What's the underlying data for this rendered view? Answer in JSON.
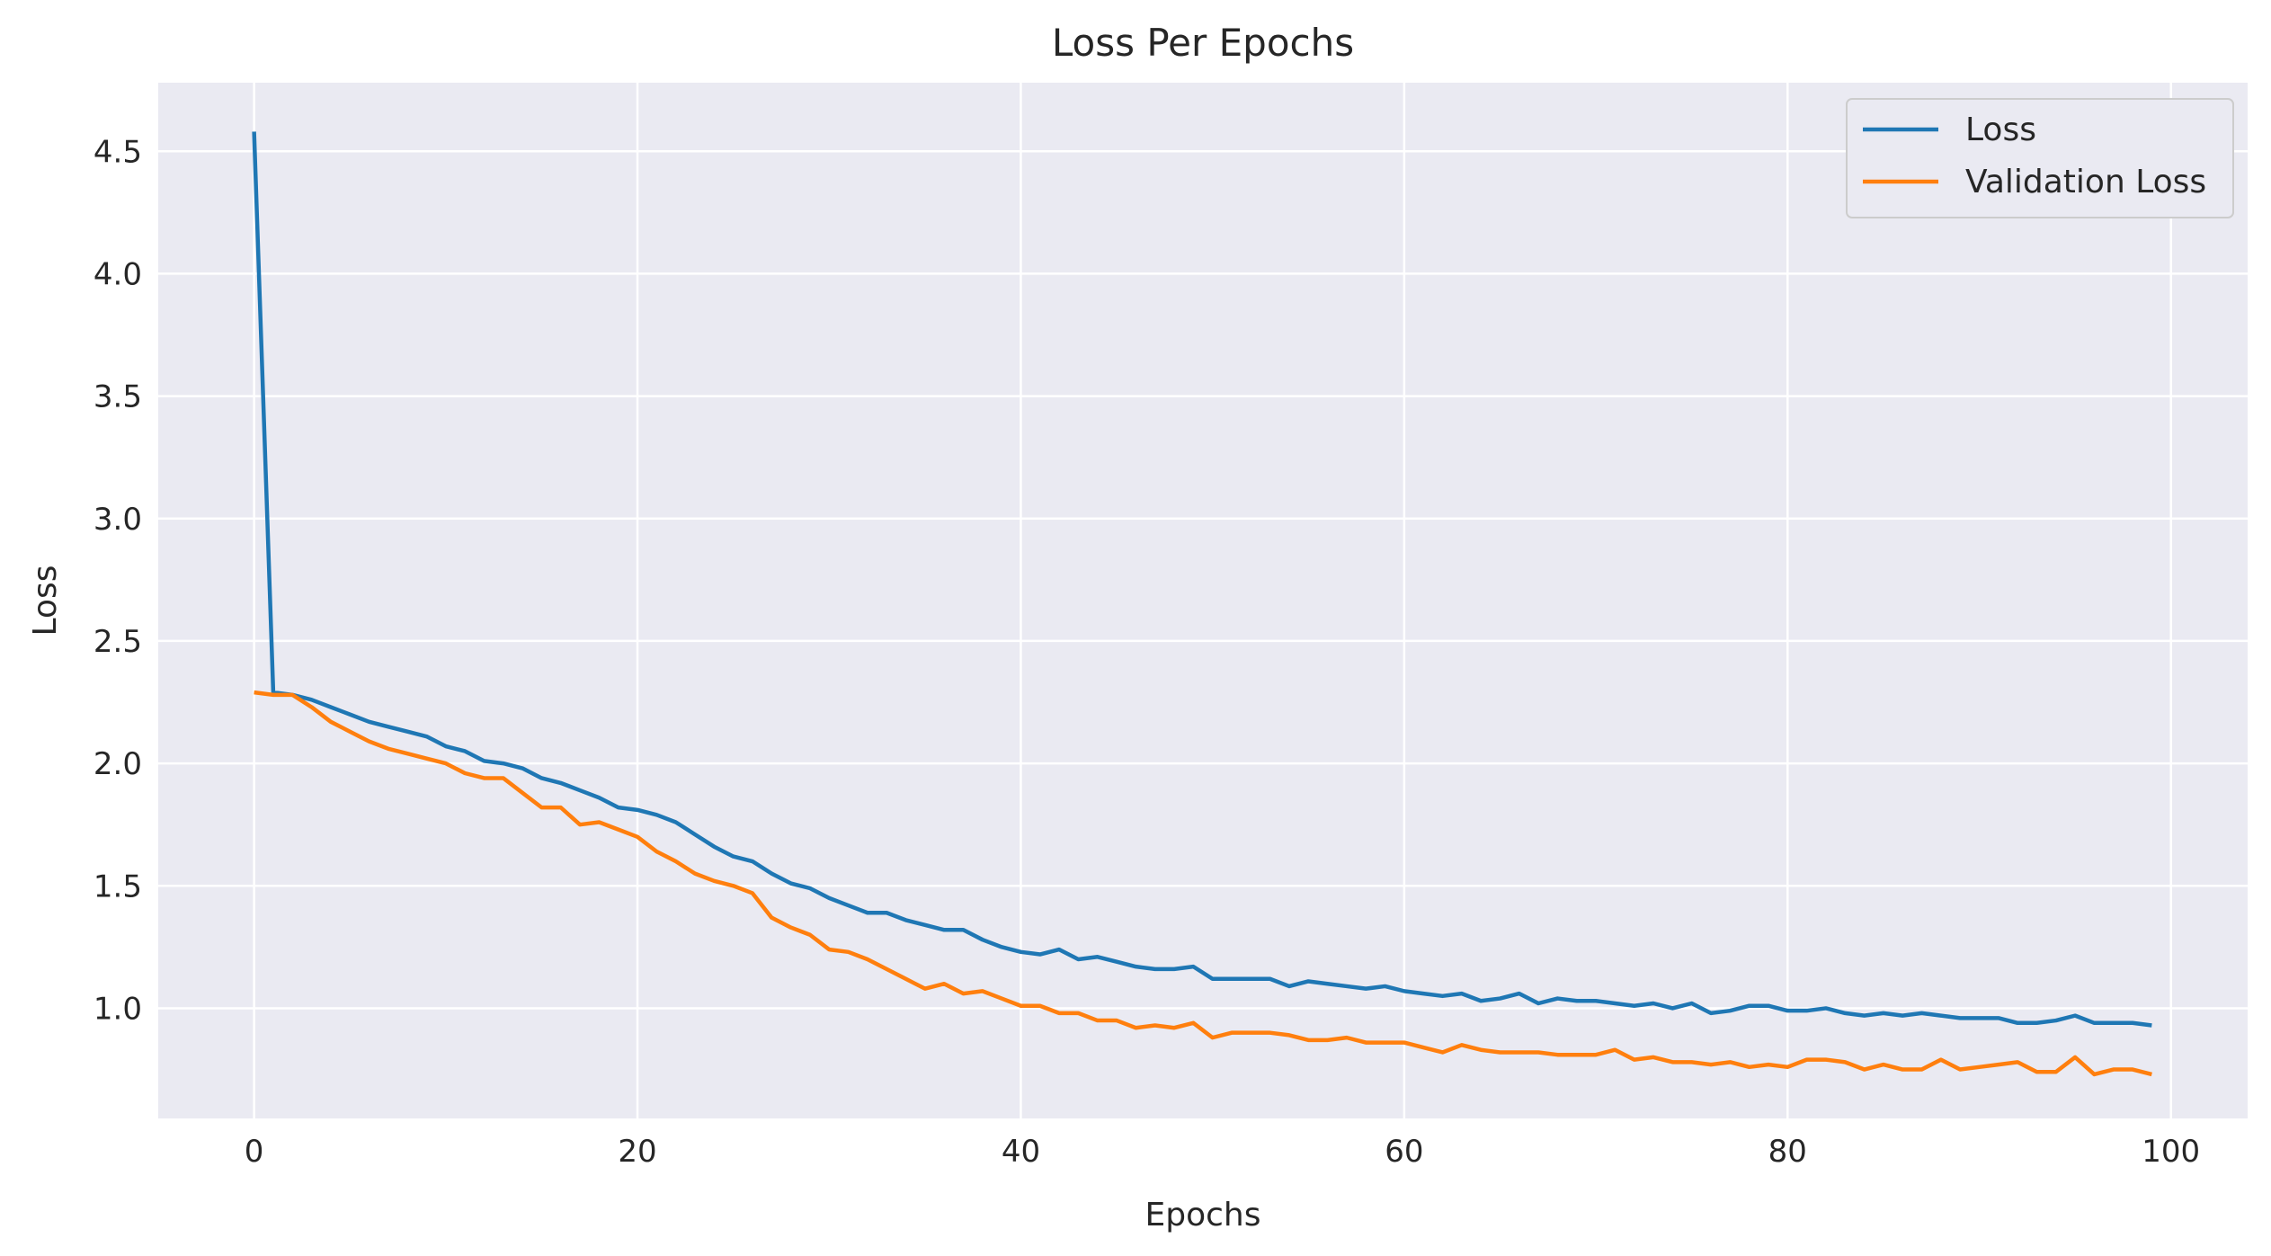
{
  "chart_data": {
    "type": "line",
    "title": "Loss Per Epochs",
    "xlabel": "Epochs",
    "ylabel": "Loss",
    "xlim": [
      -5,
      104
    ],
    "ylim": [
      0.55,
      4.78
    ],
    "xticks": [
      0,
      20,
      40,
      60,
      80,
      100
    ],
    "yticks": [
      1.0,
      1.5,
      2.0,
      2.5,
      3.0,
      3.5,
      4.0,
      4.5
    ],
    "xtick_labels": [
      "0",
      "20",
      "40",
      "60",
      "80",
      "100"
    ],
    "ytick_labels": [
      "1.0",
      "1.5",
      "2.0",
      "2.5",
      "3.0",
      "3.5",
      "4.0",
      "4.5"
    ],
    "grid": true,
    "legend_position": "upper-right",
    "series": [
      {
        "name": "Loss",
        "color": "#1f77b4",
        "values": [
          4.58,
          2.29,
          2.28,
          2.26,
          2.23,
          2.2,
          2.17,
          2.15,
          2.13,
          2.11,
          2.07,
          2.05,
          2.01,
          2.0,
          1.98,
          1.94,
          1.92,
          1.89,
          1.86,
          1.82,
          1.81,
          1.79,
          1.76,
          1.71,
          1.66,
          1.62,
          1.6,
          1.55,
          1.51,
          1.49,
          1.45,
          1.42,
          1.39,
          1.39,
          1.36,
          1.34,
          1.32,
          1.32,
          1.28,
          1.25,
          1.23,
          1.22,
          1.24,
          1.2,
          1.21,
          1.19,
          1.17,
          1.16,
          1.16,
          1.17,
          1.12,
          1.12,
          1.12,
          1.12,
          1.09,
          1.11,
          1.1,
          1.09,
          1.08,
          1.09,
          1.07,
          1.06,
          1.05,
          1.06,
          1.03,
          1.04,
          1.06,
          1.02,
          1.04,
          1.03,
          1.03,
          1.02,
          1.01,
          1.02,
          1.0,
          1.02,
          0.98,
          0.99,
          1.01,
          1.01,
          0.99,
          0.99,
          1.0,
          0.98,
          0.97,
          0.98,
          0.97,
          0.98,
          0.97,
          0.96,
          0.96,
          0.96,
          0.94,
          0.94,
          0.95,
          0.97,
          0.94,
          0.94,
          0.94,
          0.93
        ]
      },
      {
        "name": "Validation Loss",
        "color": "#ff7f0e",
        "values": [
          2.29,
          2.28,
          2.28,
          2.23,
          2.17,
          2.13,
          2.09,
          2.06,
          2.04,
          2.02,
          2.0,
          1.96,
          1.94,
          1.94,
          1.88,
          1.82,
          1.82,
          1.75,
          1.76,
          1.73,
          1.7,
          1.64,
          1.6,
          1.55,
          1.52,
          1.5,
          1.47,
          1.37,
          1.33,
          1.3,
          1.24,
          1.23,
          1.2,
          1.16,
          1.12,
          1.08,
          1.1,
          1.06,
          1.07,
          1.04,
          1.01,
          1.01,
          0.98,
          0.98,
          0.95,
          0.95,
          0.92,
          0.93,
          0.92,
          0.94,
          0.88,
          0.9,
          0.9,
          0.9,
          0.89,
          0.87,
          0.87,
          0.88,
          0.86,
          0.86,
          0.86,
          0.84,
          0.82,
          0.85,
          0.83,
          0.82,
          0.82,
          0.82,
          0.81,
          0.81,
          0.81,
          0.83,
          0.79,
          0.8,
          0.78,
          0.78,
          0.77,
          0.78,
          0.76,
          0.77,
          0.76,
          0.79,
          0.79,
          0.78,
          0.75,
          0.77,
          0.75,
          0.75,
          0.79,
          0.75,
          0.76,
          0.77,
          0.78,
          0.74,
          0.74,
          0.8,
          0.73,
          0.75,
          0.75,
          0.73
        ]
      }
    ]
  }
}
